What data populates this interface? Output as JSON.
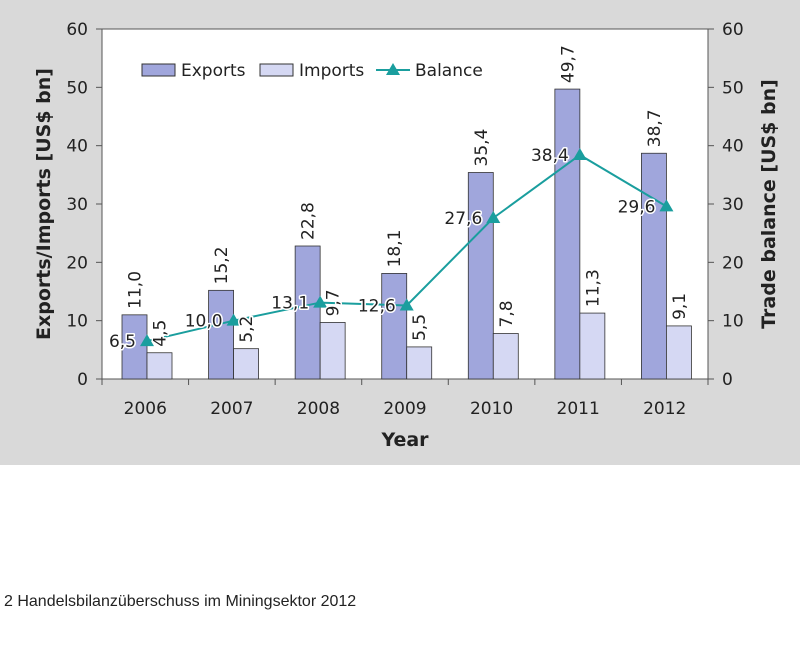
{
  "chart_data": {
    "type": "bar",
    "categories": [
      "2006",
      "2007",
      "2008",
      "2009",
      "2010",
      "2011",
      "2012"
    ],
    "series": [
      {
        "name": "Exports",
        "kind": "bar",
        "axis": "left",
        "color": "#a0a6dc",
        "values": [
          11.0,
          15.2,
          22.8,
          18.1,
          35.4,
          49.7,
          38.7
        ],
        "labels": [
          "11,0",
          "15,2",
          "22,8",
          "18,1",
          "35,4",
          "49,7",
          "38,7"
        ]
      },
      {
        "name": "Imports",
        "kind": "bar",
        "axis": "left",
        "color": "#d5d8f3",
        "values": [
          4.5,
          5.2,
          9.7,
          5.5,
          7.8,
          11.3,
          9.1
        ],
        "labels": [
          "4,5",
          "5,2",
          "9,7",
          "5,5",
          "7,8",
          "11,3",
          "9,1"
        ]
      },
      {
        "name": "Balance",
        "kind": "line",
        "axis": "right",
        "color": "#1a9e9e",
        "values": [
          6.5,
          10.0,
          13.1,
          12.6,
          27.6,
          38.4,
          29.6
        ],
        "labels": [
          "6,5",
          "10,0",
          "13,1",
          "12,6",
          "27,6",
          "38,4",
          "29,6"
        ]
      }
    ],
    "xlabel": "Year",
    "ylabel": "Exports/Imports [US$ bn]",
    "y2label": "Trade balance [US$ bn]",
    "ylim": [
      0,
      60
    ],
    "y2lim": [
      0,
      60
    ],
    "yticks": [
      "0",
      "10",
      "20",
      "30",
      "40",
      "50",
      "60"
    ],
    "grid": false,
    "legend": "top-left inside"
  },
  "caption": "2 Handelsbilanzüberschuss im Miningsektor 2012"
}
